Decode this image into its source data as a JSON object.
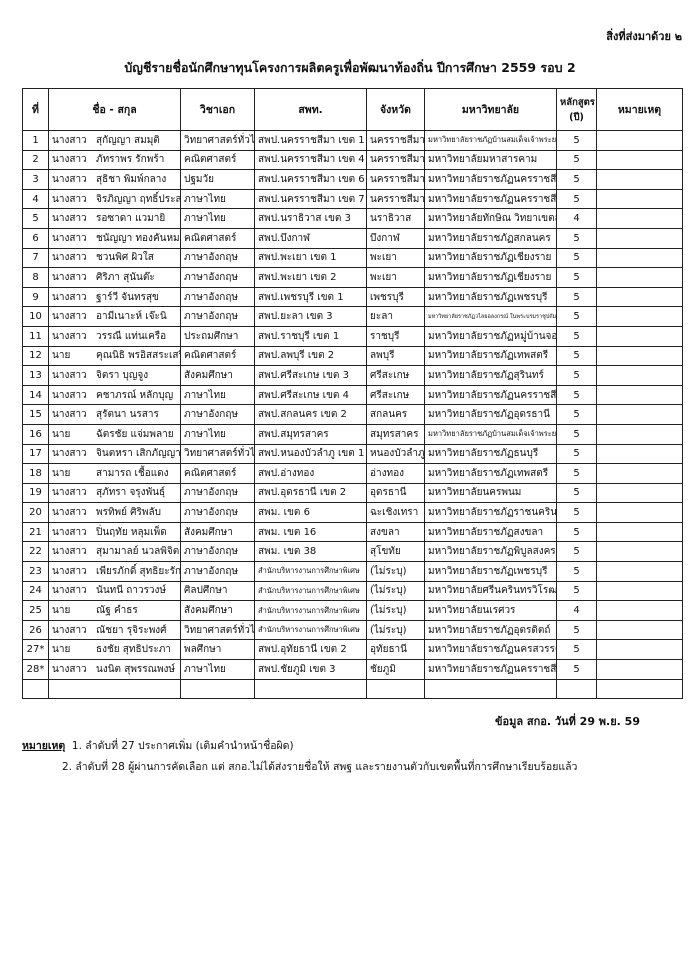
{
  "attachment_label": "สิ่งที่ส่งมาด้วย ๒",
  "title": "บัญชีรายชื่อนักศึกษาทุนโครงการผลิตครูเพื่อพัฒนาท้องถิ่น ปีการศึกษา 2559 รอบ 2",
  "headers": [
    "ที่",
    "ชื่อ - สกุล",
    "วิชาเอก",
    "สพท.",
    "จังหวัด",
    "มหาวิทยาลัย",
    "หลักสูตร (ปี)",
    "หมายเหตุ"
  ],
  "rows": [
    {
      "no": "1",
      "title": "นางสาว",
      "name": "สุกัญญา สมมุติ",
      "major": "วิทยาศาสตร์ทั่วไป",
      "office": "สพป.นครราชสีมา เขต 1",
      "province": "นครราชสีมา",
      "university": "มหาวิทยาลัยราชภัฏบ้านสมเด็จเจ้าพระยา",
      "years": "5",
      "remark": ""
    },
    {
      "no": "2",
      "title": "นางสาว",
      "name": "ภัทราพร รักพร้า",
      "major": "คณิตศาสตร์",
      "office": "สพป.นครราชสีมา เขต 4",
      "province": "นครราชสีมา",
      "university": "มหาวิทยาลัยมหาสารคาม",
      "years": "5",
      "remark": ""
    },
    {
      "no": "3",
      "title": "นางสาว",
      "name": "สุธิชา พิมพ์กลาง",
      "major": "ปฐมวัย",
      "office": "สพป.นครราชสีมา เขต 6",
      "province": "นครราชสีมา",
      "university": "มหาวิทยาลัยราชภัฏนครราชสีมา",
      "years": "5",
      "remark": ""
    },
    {
      "no": "4",
      "title": "นางสาว",
      "name": "จิรภิญญา ฤทธิ์ประสาท",
      "major": "ภาษาไทย",
      "office": "สพป.นครราชสีมา เขต 7",
      "province": "นครราชสีมา",
      "university": "มหาวิทยาลัยราชภัฏนครราชสีมา",
      "years": "5",
      "remark": ""
    },
    {
      "no": "5",
      "title": "นางสาว",
      "name": "รอซาดา แวมายิ",
      "major": "ภาษาไทย",
      "office": "สพป.นราธิวาส เขต 3",
      "province": "นราธิวาส",
      "university": "มหาวิทยาลัยทักษิณ วิทยาเขตสงขลา",
      "years": "4",
      "remark": ""
    },
    {
      "no": "6",
      "title": "นางสาว",
      "name": "ชนัญญา ทองคันหม",
      "major": "คณิตศาสตร์",
      "office": "สพป.บึงกาฬ",
      "province": "บึงกาฬ",
      "university": "มหาวิทยาลัยราชภัฏสกลนคร",
      "years": "5",
      "remark": ""
    },
    {
      "no": "7",
      "title": "นางสาว",
      "name": "ชวนพิศ ผิวใส",
      "major": "ภาษาอังกฤษ",
      "office": "สพป.พะเยา เขต 1",
      "province": "พะเยา",
      "university": "มหาวิทยาลัยราชภัฏเชียงราย",
      "years": "5",
      "remark": ""
    },
    {
      "no": "8",
      "title": "นางสาว",
      "name": "ศิริภา สุนันต๊ะ",
      "major": "ภาษาอังกฤษ",
      "office": "สพป.พะเยา เขต 2",
      "province": "พะเยา",
      "university": "มหาวิทยาลัยราชภัฏเชียงราย",
      "years": "5",
      "remark": ""
    },
    {
      "no": "9",
      "title": "นางสาว",
      "name": "ฐาร์วี จันทรสุข",
      "major": "ภาษาอังกฤษ",
      "office": "สพป.เพชรบุรี เขต 1",
      "province": "เพชรบุรี",
      "university": "มหาวิทยาลัยราชภัฏเพชรบุรี",
      "years": "5",
      "remark": ""
    },
    {
      "no": "10",
      "title": "นางสาว",
      "name": "อามีเนาะห์ เจ๊ะนิ",
      "major": "ภาษาอังกฤษ",
      "office": "สพป.ยะลา เขต 3",
      "province": "ยะลา",
      "university": "มหาวิทยาลัยราชภัฏวไลยอลงกรณ์ ในพระบรมราชูปถัมภ์",
      "years": "5",
      "remark": ""
    },
    {
      "no": "11",
      "title": "นางสาว",
      "name": "วรรณี แท่นเครือ",
      "major": "ประถมศึกษา",
      "office": "สพป.ราชบุรี เขต 1",
      "province": "ราชบุรี",
      "university": "มหาวิทยาลัยราชภัฏหมู่บ้านจอมบึง",
      "years": "5",
      "remark": ""
    },
    {
      "no": "12",
      "title": "นาย",
      "name": "คุณนิธิ พรอิสสระเสรี",
      "major": "คณิตศาสตร์",
      "office": "สพป.ลพบุรี เขต 2",
      "province": "ลพบุรี",
      "university": "มหาวิทยาลัยราชภัฏเทพสตรี",
      "years": "5",
      "remark": ""
    },
    {
      "no": "13",
      "title": "นางสาว",
      "name": "จิตรา บุญจูง",
      "major": "สังคมศึกษา",
      "office": "สพป.ศรีสะเกษ เขต 3",
      "province": "ศรีสะเกษ",
      "university": "มหาวิทยาลัยราชภัฏสุรินทร์",
      "years": "5",
      "remark": ""
    },
    {
      "no": "14",
      "title": "นางสาว",
      "name": "คชาภรณ์ หลักบุญ",
      "major": "ภาษาไทย",
      "office": "สพป.ศรีสะเกษ เขต 4",
      "province": "ศรีสะเกษ",
      "university": "มหาวิทยาลัยราชภัฏนครราชสีมา",
      "years": "5",
      "remark": ""
    },
    {
      "no": "15",
      "title": "นางสาว",
      "name": "สุรัตนา นรสาร",
      "major": "ภาษาอังกฤษ",
      "office": "สพป.สกลนคร เขต 2",
      "province": "สกลนคร",
      "university": "มหาวิทยาลัยราชภัฏอุดรธานี",
      "years": "5",
      "remark": ""
    },
    {
      "no": "16",
      "title": "นาย",
      "name": "ฉัตรชัย แจ่มพลาย",
      "major": "ภาษาไทย",
      "office": "สพป.สมุทรสาคร",
      "province": "สมุทรสาคร",
      "university": "มหาวิทยาลัยราชภัฏบ้านสมเด็จเจ้าพระยา",
      "years": "5",
      "remark": ""
    },
    {
      "no": "17",
      "title": "นางสาว",
      "name": "จินตหรา  เสิกภัญญา",
      "major": "วิทยาศาสตร์ทั่วไป",
      "office": "สพป.หนองบัวลำภู เขต 1",
      "province": "หนองบัวลำภู",
      "university": "มหาวิทยาลัยราชภัฏธนบุรี",
      "years": "5",
      "remark": ""
    },
    {
      "no": "18",
      "title": "นาย",
      "name": "สามารถ เชื้อแดง",
      "major": "คณิตศาสตร์",
      "office": "สพป.อ่างทอง",
      "province": "อ่างทอง",
      "university": "มหาวิทยาลัยราชภัฏเทพสตรี",
      "years": "5",
      "remark": ""
    },
    {
      "no": "19",
      "title": "นางสาว",
      "name": "สุภัทรา จรุงพันธุ์",
      "major": "ภาษาอังกฤษ",
      "office": "สพป.อุดรธานี เขต 2",
      "province": "อุดรธานี",
      "university": "มหาวิทยาลัยนครพนม",
      "years": "5",
      "remark": ""
    },
    {
      "no": "20",
      "title": "นางสาว",
      "name": "พรทิพย์ ศิริพลับ",
      "major": "ภาษาอังกฤษ",
      "office": "สพม. เขต 6",
      "province": "ฉะเชิงเทรา",
      "university": "มหาวิทยาลัยราชภัฏราชนครินทร์",
      "years": "5",
      "remark": ""
    },
    {
      "no": "21",
      "title": "นางสาว",
      "name": "ปิ่นฤทัย หลุมเพ็ด",
      "major": "สังคมศึกษา",
      "office": "สพม. เขต 16",
      "province": "สงขลา",
      "university": "มหาวิทยาลัยราชภัฏสงขลา",
      "years": "5",
      "remark": ""
    },
    {
      "no": "22",
      "title": "นางสาว",
      "name": "สุมามาลย์ นวลพิจิตร",
      "major": "ภาษาอังกฤษ",
      "office": "สพม. เขต 38",
      "province": "สุโขทัย",
      "university": "มหาวิทยาลัยราชภัฏพิบูลสงคราม",
      "years": "5",
      "remark": ""
    },
    {
      "no": "23",
      "title": "นางสาว",
      "name": "เพียรภักดิ์ สุทธิยะรักษ์",
      "major": "ภาษาอังกฤษ",
      "office": "สำนักบริหารงานการศึกษาพิเศษ",
      "province": "(ไม่ระบุ)",
      "university": "มหาวิทยาลัยราชภัฏเพชรบุรี",
      "years": "5",
      "remark": ""
    },
    {
      "no": "24",
      "title": "นางสาว",
      "name": "นันทนี ถาวรวงษ์",
      "major": "ศิลปศึกษา",
      "office": "สำนักบริหารงานการศึกษาพิเศษ",
      "province": "(ไม่ระบุ)",
      "university": "มหาวิทยาลัยศรีนครินทรวิโรฒ",
      "years": "5",
      "remark": ""
    },
    {
      "no": "25",
      "title": "นาย",
      "name": "ณัฐ คำธร",
      "major": "สังคมศึกษา",
      "office": "สำนักบริหารงานการศึกษาพิเศษ",
      "province": "(ไม่ระบุ)",
      "university": "มหาวิทยาลัยนเรศวร",
      "years": "4",
      "remark": ""
    },
    {
      "no": "26",
      "title": "นางสาว",
      "name": "ณัชยา รุจิระพงศ์",
      "major": "วิทยาศาสตร์ทั่วไป",
      "office": "สำนักบริหารงานการศึกษาพิเศษ",
      "province": "(ไม่ระบุ)",
      "university": "มหาวิทยาลัยราชภัฏอุตรดิตถ์",
      "years": "5",
      "remark": ""
    },
    {
      "no": "27*",
      "title": "นาย",
      "name": "ธงชัย  สุทธิประภา",
      "major": "พลศึกษา",
      "office": "สพป.อุทัยธานี เขต 2",
      "province": "อุทัยธานี",
      "university": "มหาวิทยาลัยราชภัฏนครสวรรค์",
      "years": "5",
      "remark": ""
    },
    {
      "no": "28*",
      "title": "นางสาว",
      "name": "นงนิต สุพรรณพงษ์",
      "major": "ภาษาไทย",
      "office": "สพป.ชัยภูมิ เขต 3",
      "province": "ชัยภูมิ",
      "university": "มหาวิทยาลัยราชภัฏนครราชสีมา",
      "years": "5",
      "remark": ""
    }
  ],
  "source": "ข้อมูล สกอ. วันที่ 29 พ.ย. 59",
  "notes": {
    "label": "หมายเหตุ",
    "items": [
      "1. ลำดับที่ 27 ประกาศเพิ่ม (เติมคำนำหน้าชื่อผิด)",
      "2. ลำดับที่ 28 ผู้ผ่านการคัดเลือก แต่ สกอ.ไม่ได้ส่งรายชื่อให้ สพฐ และรายงานตัวกับเขตพื้นที่การศึกษาเรียบร้อยแล้ว"
    ]
  }
}
